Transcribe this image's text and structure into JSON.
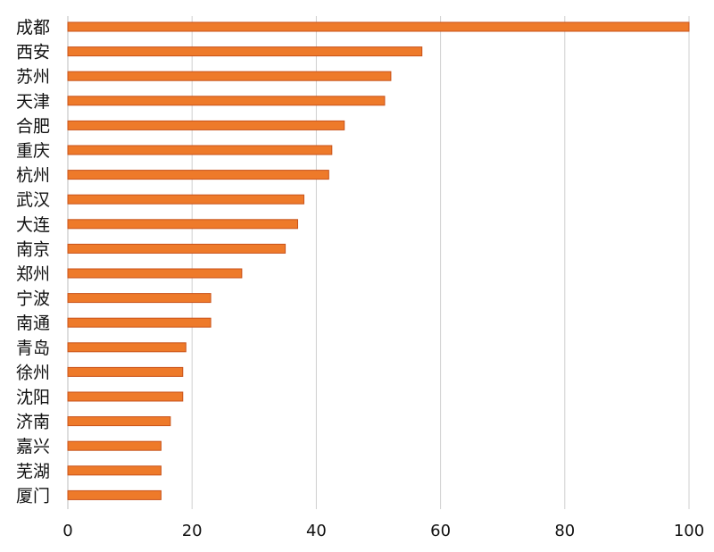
{
  "chart_data": {
    "type": "bar",
    "orientation": "horizontal",
    "title": "",
    "xlabel": "",
    "ylabel": "",
    "categories": [
      "成都",
      "西安",
      "苏州",
      "天津",
      "合肥",
      "重庆",
      "杭州",
      "武汉",
      "大连",
      "南京",
      "郑州",
      "宁波",
      "南通",
      "青岛",
      "徐州",
      "沈阳",
      "济南",
      "嘉兴",
      "芜湖",
      "厦门"
    ],
    "values": [
      100,
      57,
      52,
      51,
      44.5,
      42.5,
      42,
      38,
      37,
      35,
      28,
      23,
      23,
      19,
      18.5,
      18.5,
      16.5,
      15,
      15,
      15
    ],
    "xlim": [
      0,
      100
    ],
    "xticks": [
      0,
      20,
      40,
      60,
      80,
      100
    ],
    "xtick_labels": [
      "0",
      "20",
      "40",
      "60",
      "80",
      "100"
    ],
    "grid": "vertical",
    "legend": "none",
    "colors": {
      "bar_fill": "#ee7a2a",
      "bar_stroke": "#c8521a"
    }
  }
}
